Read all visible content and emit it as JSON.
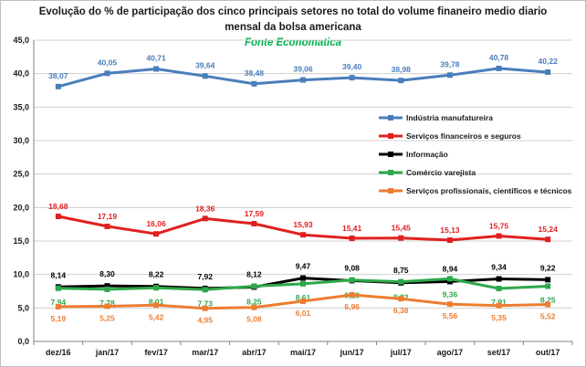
{
  "chart_data": {
    "type": "line",
    "title_line1": "Evolução do % de participação dos cinco principais setores no total do volume finaneiro medio diario",
    "title_line2": "mensal da bolsa americana",
    "subtitle": "Fonte Economatica",
    "subtitle_color": "#00b050",
    "categories": [
      "dez/16",
      "jan/17",
      "fev/17",
      "mar/17",
      "abr/17",
      "mai/17",
      "jun/17",
      "jul/17",
      "ago/17",
      "set/17",
      "out/17"
    ],
    "y_ticks": [
      "0,0",
      "5,0",
      "10,0",
      "15,0",
      "20,0",
      "25,0",
      "30,0",
      "35,0",
      "40,0",
      "45,0"
    ],
    "ylim": [
      0,
      45
    ],
    "grid": true,
    "legend_position": "right",
    "series": [
      {
        "name": "Indústria manufatureira",
        "color": "#4a7ebb",
        "values": [
          38.07,
          40.05,
          40.71,
          39.64,
          38.48,
          39.06,
          39.4,
          38.98,
          39.78,
          40.78,
          40.22
        ],
        "labels": [
          "38,07",
          "40,05",
          "40,71",
          "39,64",
          "38,48",
          "39,06",
          "39,40",
          "38,98",
          "39,78",
          "40,78",
          "40,22"
        ]
      },
      {
        "name": "Serviços financeiros e seguros",
        "color": "#e02020",
        "values": [
          18.68,
          17.19,
          16.06,
          18.36,
          17.59,
          15.93,
          15.41,
          15.45,
          15.13,
          15.75,
          15.24
        ],
        "labels": [
          "18,68",
          "17,19",
          "16,06",
          "18,36",
          "17,59",
          "15,93",
          "15,41",
          "15,45",
          "15,13",
          "15,75",
          "15,24"
        ]
      },
      {
        "name": "Informação",
        "color": "#000000",
        "values": [
          8.14,
          8.3,
          8.22,
          7.92,
          8.12,
          9.47,
          9.08,
          8.75,
          8.94,
          9.34,
          9.22
        ],
        "labels": [
          "8,14",
          "8,30",
          "8,22",
          "7,92",
          "8,12",
          "9,47",
          "9,08",
          "8,75",
          "8,94",
          "9,34",
          "9,22"
        ]
      },
      {
        "name": "Comércio varejista",
        "color": "#2ea84a",
        "values": [
          7.94,
          7.78,
          8.01,
          7.73,
          8.25,
          8.61,
          9.18,
          8.92,
          9.36,
          7.91,
          8.25
        ],
        "labels": [
          "7,94",
          "7,78",
          "8,01",
          "7,73",
          "8,25",
          "8,61",
          "9,18",
          "8,92",
          "9,36",
          "7,91",
          "8,25"
        ]
      },
      {
        "name": "Serviços profissionais, científicos e técnicos",
        "color": "#ed7d31",
        "values": [
          5.19,
          5.25,
          5.42,
          4.95,
          5.08,
          6.01,
          6.96,
          6.38,
          5.56,
          5.35,
          5.52
        ],
        "labels": [
          "5,19",
          "5,25",
          "5,42",
          "4,95",
          "5,08",
          "6,01",
          "6,96",
          "6,38",
          "5,56",
          "5,35",
          "5,52"
        ]
      }
    ]
  }
}
